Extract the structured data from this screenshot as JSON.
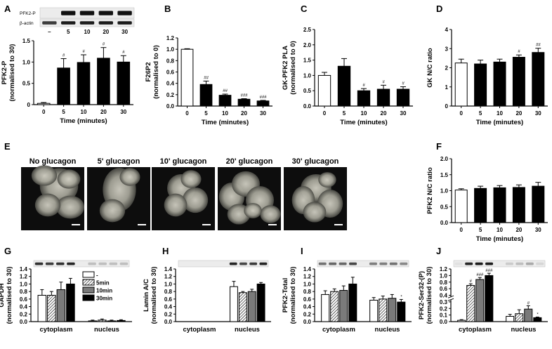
{
  "chart_data": [
    {
      "panel": "A",
      "type": "bar",
      "categories": [
        "0",
        "5",
        "10",
        "20",
        "30"
      ],
      "values": [
        0.03,
        0.86,
        0.99,
        1.09,
        1.0
      ],
      "errors": [
        0.02,
        0.22,
        0.18,
        0.25,
        0.15
      ],
      "fills": [
        "#ffffff",
        "#000000",
        "#000000",
        "#000000",
        "#000000"
      ],
      "annotations": [
        "",
        "#",
        "#",
        "#",
        "#"
      ],
      "ylabel": "PFK2-P\n(normalised to 30)",
      "xlabel": "Time (minutes)",
      "ylim": [
        0,
        1.5
      ],
      "yticks": [
        "0",
        "0.5",
        "1.0",
        "1.5"
      ],
      "blot": {
        "labels": [
          "PFK2-P",
          "β-actin"
        ],
        "lanes": [
          "–",
          "5",
          "10",
          "20",
          "30"
        ]
      }
    },
    {
      "panel": "B",
      "type": "bar",
      "categories": [
        "0",
        "5",
        "10",
        "20",
        "30"
      ],
      "values": [
        1.0,
        0.38,
        0.19,
        0.12,
        0.09
      ],
      "errors": [
        0.01,
        0.06,
        0.02,
        0.01,
        0.01
      ],
      "fills": [
        "#ffffff",
        "#000000",
        "#000000",
        "#000000",
        "#000000"
      ],
      "annotations": [
        "",
        "##",
        "##",
        "###",
        "###"
      ],
      "ylabel": "F26P2\n(normalised to 0)",
      "xlabel": "Time (minutes)",
      "ylim": [
        0,
        1.2
      ],
      "yticks": [
        "0.0",
        "0.2",
        "0.4",
        "0.6",
        "0.8",
        "1.0",
        "1.2"
      ]
    },
    {
      "panel": "C",
      "type": "bar",
      "categories": [
        "0",
        "5",
        "10",
        "20",
        "30"
      ],
      "values": [
        1.0,
        1.3,
        0.5,
        0.55,
        0.55
      ],
      "errors": [
        0.1,
        0.25,
        0.07,
        0.13,
        0.08
      ],
      "fills": [
        "#ffffff",
        "#000000",
        "#000000",
        "#000000",
        "#000000"
      ],
      "annotations": [
        "",
        "",
        "#",
        "#",
        "#"
      ],
      "ylabel": "GK-PFK2 PLA\n(normalised to 0)",
      "xlabel": "Time (minutes)",
      "ylim": [
        0,
        2.5
      ],
      "yticks": [
        "0.0",
        "0.5",
        "1.0",
        "1.5",
        "2.0",
        "2.5"
      ]
    },
    {
      "panel": "D",
      "type": "bar",
      "categories": [
        "0",
        "5",
        "10",
        "20",
        "30"
      ],
      "values": [
        2.25,
        2.2,
        2.3,
        2.55,
        2.8
      ],
      "errors": [
        0.2,
        0.2,
        0.15,
        0.12,
        0.22
      ],
      "fills": [
        "#ffffff",
        "#000000",
        "#000000",
        "#000000",
        "#000000"
      ],
      "annotations": [
        "",
        "",
        "",
        "#",
        "##"
      ],
      "ylabel": "GK N/C ratio",
      "xlabel": "Time (minutes)",
      "ylim": [
        0,
        4
      ],
      "yticks": [
        "0",
        "1",
        "2",
        "3",
        "4"
      ]
    },
    {
      "panel": "F",
      "type": "bar",
      "categories": [
        "0",
        "5",
        "10",
        "20",
        "30"
      ],
      "values": [
        1.02,
        1.07,
        1.09,
        1.1,
        1.14
      ],
      "errors": [
        0.04,
        0.07,
        0.07,
        0.08,
        0.12
      ],
      "fills": [
        "#ffffff",
        "#000000",
        "#000000",
        "#000000",
        "#000000"
      ],
      "annotations": [
        "",
        "",
        "",
        "",
        ""
      ],
      "ylabel": "PFK2 N/C ratio",
      "xlabel": "Time (minutes)",
      "ylim": [
        0,
        2
      ],
      "yticks": [
        "0.0",
        "0.5",
        "1.0",
        "1.5",
        "2.0"
      ]
    },
    {
      "panel": "G",
      "type": "bar",
      "groups": [
        "cytoplasm",
        "nucleus"
      ],
      "series": [
        {
          "name": "-",
          "values": [
            0.7,
            0.02
          ],
          "errors": [
            0.15,
            0.02
          ]
        },
        {
          "name": "5min",
          "values": [
            0.7,
            0.04
          ],
          "errors": [
            0.1,
            0.03
          ]
        },
        {
          "name": "10min",
          "values": [
            0.85,
            0.02
          ],
          "errors": [
            0.2,
            0.02
          ]
        },
        {
          "name": "30min",
          "values": [
            1.0,
            0.03
          ],
          "errors": [
            0.15,
            0.02
          ]
        }
      ],
      "annotations": [
        [
          "",
          "",
          "",
          ""
        ],
        [
          "",
          "",
          "",
          ""
        ]
      ],
      "ylabel": "GAPDH\n(normalised to 30)",
      "ylim": [
        0,
        1.4
      ],
      "yticks": [
        "0.0",
        "0.2",
        "0.4",
        "0.6",
        "0.8",
        "1.0",
        "1.2",
        "1.4"
      ],
      "legend_position": "top-right"
    },
    {
      "panel": "H",
      "type": "bar",
      "groups": [
        "cytoplasm",
        "nucleus"
      ],
      "series": [
        {
          "name": "-",
          "values": [
            0,
            0.93
          ],
          "errors": [
            0,
            0.14
          ]
        },
        {
          "name": "5min",
          "values": [
            0,
            0.77
          ],
          "errors": [
            0,
            0.03
          ]
        },
        {
          "name": "10min",
          "values": [
            0,
            0.8
          ],
          "errors": [
            0,
            0.06
          ]
        },
        {
          "name": "30min",
          "values": [
            0,
            1.0
          ],
          "errors": [
            0,
            0.04
          ]
        }
      ],
      "annotations": [
        [
          "",
          "",
          "",
          ""
        ],
        [
          "",
          "",
          "",
          ""
        ]
      ],
      "ylabel": "Lamin A/C\n(normalised to 30)",
      "ylim": [
        0,
        1.4
      ],
      "yticks": [
        "0.0",
        "0.2",
        "0.4",
        "0.6",
        "0.8",
        "1.0",
        "1.2",
        "1.4"
      ]
    },
    {
      "panel": "I",
      "type": "bar",
      "groups": [
        "cytoplasm",
        "nucleus"
      ],
      "series": [
        {
          "name": "-",
          "values": [
            0.72,
            0.57
          ],
          "errors": [
            0.1,
            0.07
          ]
        },
        {
          "name": "5min",
          "values": [
            0.8,
            0.6
          ],
          "errors": [
            0.07,
            0.08
          ]
        },
        {
          "name": "10min",
          "values": [
            0.83,
            0.62
          ],
          "errors": [
            0.12,
            0.1
          ]
        },
        {
          "name": "30min",
          "values": [
            1.0,
            0.52
          ],
          "errors": [
            0.18,
            0.07
          ]
        }
      ],
      "annotations": [
        [
          "",
          "",
          "",
          ""
        ],
        [
          "",
          "",
          "",
          "*"
        ]
      ],
      "ylabel": "PFK2-Total\n(normalised to 30)",
      "ylim": [
        0,
        1.4
      ],
      "yticks": [
        "0.0",
        "0.2",
        "0.4",
        "0.6",
        "0.8",
        "1.0",
        "1.2",
        "1.4"
      ]
    },
    {
      "panel": "J",
      "type": "bar",
      "groups": [
        "cytoplasm",
        "nucleus"
      ],
      "series": [
        {
          "name": "-",
          "values": [
            0.02,
            0.08
          ],
          "errors": [
            0.01,
            0.03
          ]
        },
        {
          "name": "5min",
          "values": [
            0.7,
            0.12
          ],
          "errors": [
            0.05,
            0.06
          ]
        },
        {
          "name": "10min",
          "values": [
            0.88,
            0.19
          ],
          "errors": [
            0.06,
            0.05
          ]
        },
        {
          "name": "30min",
          "values": [
            1.0,
            0.06
          ],
          "errors": [
            0.07,
            0.01
          ]
        }
      ],
      "annotations": [
        [
          "",
          "#",
          "###",
          "###"
        ],
        [
          "",
          "",
          "#",
          "*"
        ]
      ],
      "ylabel": "PFK2-Ser32-(P)\n(normalised to 30)",
      "ylim": [
        0,
        1.2
      ],
      "yticks": [
        "0.0",
        "0.1",
        "0.2",
        "0.3",
        "0.4",
        "0.6",
        "0.8",
        "1.0",
        "1.2"
      ],
      "axis_break": true
    }
  ],
  "panel_E": {
    "label": "E",
    "images": [
      "No glucagon",
      "5' glucagon",
      "10' glucagon",
      "20' glucagon",
      "30' glucagon"
    ]
  },
  "colors": {
    "bar_white": "#ffffff",
    "bar_black": "#000000",
    "bar_gray": "#7a7a7a"
  }
}
